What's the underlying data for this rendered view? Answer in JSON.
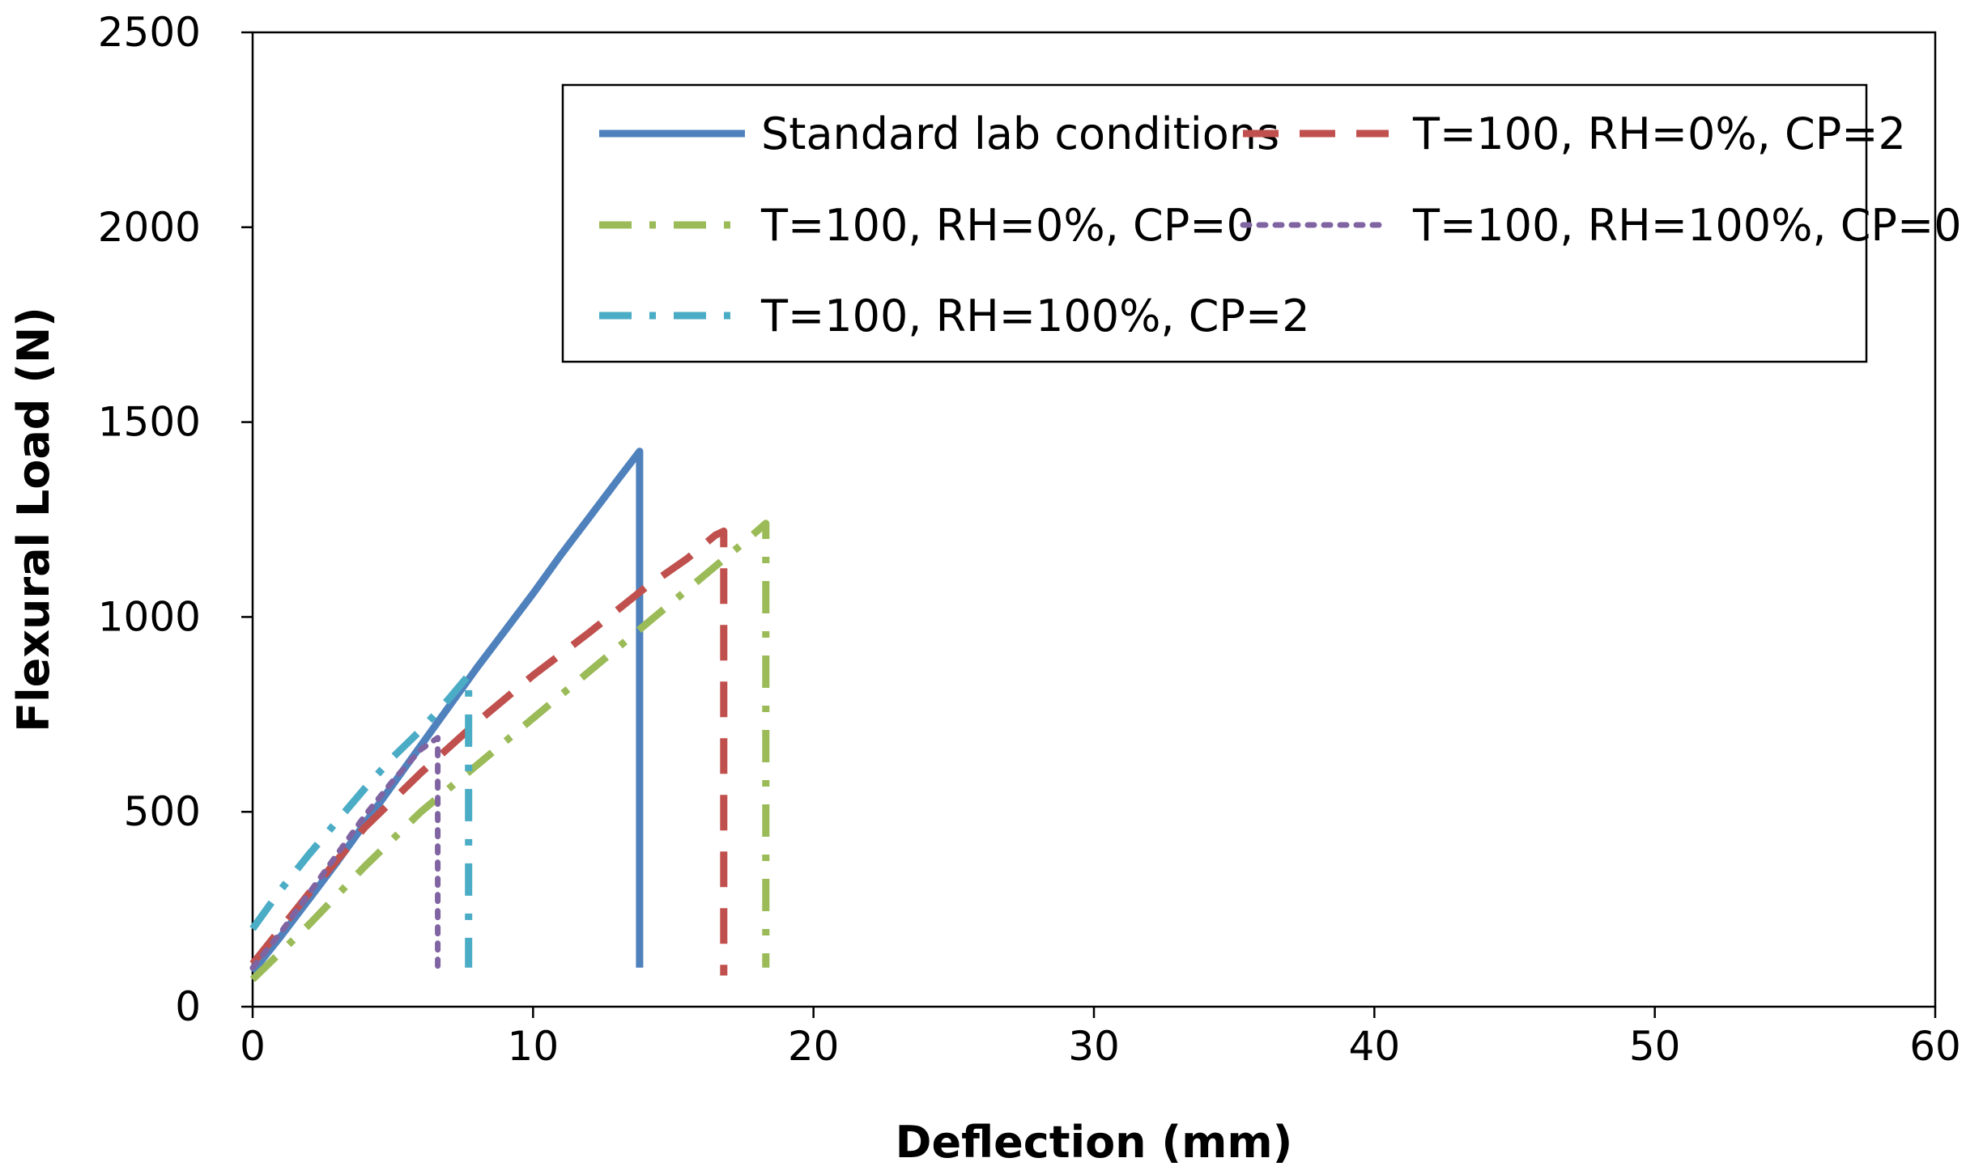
{
  "chart_data": {
    "type": "line",
    "title": "",
    "xlabel": "Deflection (mm)",
    "ylabel": "Flexural Load (N)",
    "xlim": [
      0,
      60
    ],
    "ylim": [
      0,
      2500
    ],
    "xticks": [
      0,
      10,
      20,
      30,
      40,
      50,
      60
    ],
    "yticks": [
      0,
      500,
      1000,
      1500,
      2000,
      2500
    ],
    "grid": false,
    "legend_position": "top-right",
    "series": [
      {
        "name": "Standard lab conditions",
        "color": "#4f81bd",
        "style": "solid",
        "x": [
          0,
          1,
          2,
          3,
          4,
          5,
          6,
          7,
          8,
          9,
          10,
          11,
          12,
          13,
          13.8,
          13.8
        ],
        "y": [
          90,
          180,
          275,
          370,
          470,
          570,
          670,
          770,
          870,
          965,
          1060,
          1160,
          1255,
          1350,
          1425,
          100
        ]
      },
      {
        "name": "T=100, RH=0%, CP=2",
        "color": "#c0504d",
        "style": "dash",
        "x": [
          0,
          2,
          4,
          6,
          8,
          10,
          12,
          14,
          15.5,
          16.5,
          16.8,
          16.8
        ],
        "y": [
          110,
          290,
          460,
          600,
          730,
          850,
          960,
          1075,
          1150,
          1210,
          1220,
          80
        ]
      },
      {
        "name": "T=100, RH=0%, CP=0",
        "color": "#9bbb59",
        "style": "dashdot",
        "x": [
          0,
          2,
          4,
          6,
          8,
          10,
          12,
          14,
          16,
          17.5,
          18.3,
          18.3
        ],
        "y": [
          70,
          210,
          360,
          500,
          620,
          740,
          860,
          980,
          1100,
          1190,
          1240,
          100
        ]
      },
      {
        "name": "T=100, RH=100%, CP=0",
        "color": "#8064a2",
        "style": "dot",
        "x": [
          0,
          1,
          2,
          3,
          4,
          5,
          6,
          6.6,
          6.6
        ],
        "y": [
          100,
          190,
          290,
          390,
          490,
          580,
          660,
          690,
          100
        ]
      },
      {
        "name": "T=100, RH=100%, CP=2",
        "color": "#4bacc6",
        "style": "dashdot",
        "x": [
          0,
          1,
          2,
          3,
          4,
          5,
          6,
          7,
          7.7,
          7.7
        ],
        "y": [
          200,
          300,
          390,
          475,
          560,
          640,
          710,
          790,
          850,
          100
        ]
      }
    ]
  }
}
